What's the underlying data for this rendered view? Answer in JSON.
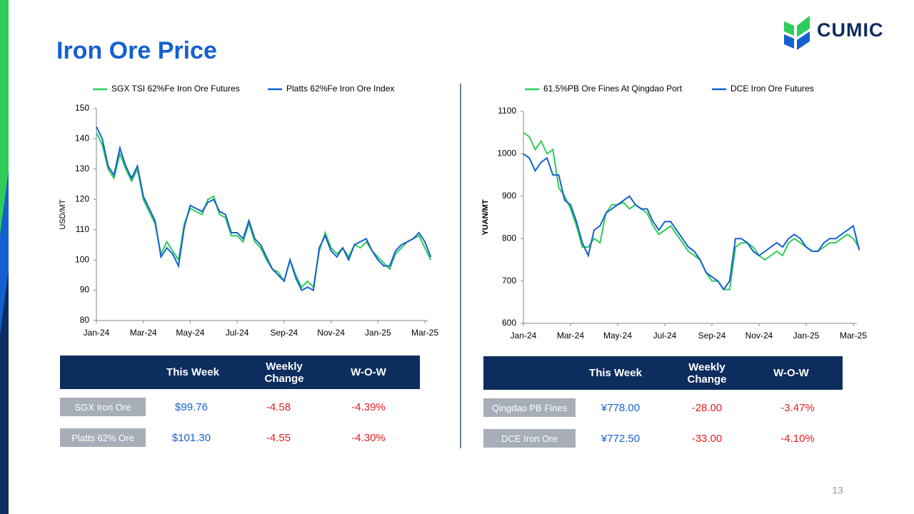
{
  "title": "Iron Ore Price",
  "logo": "CUMIC",
  "page_number": "13",
  "chart_data": [
    {
      "type": "line",
      "ylabel": "USD/MT",
      "legend": "top",
      "categories": [
        "Jan-24",
        null,
        null,
        null,
        null,
        null,
        null,
        null,
        "Mar-24",
        null,
        null,
        null,
        null,
        null,
        null,
        null,
        "May-24",
        null,
        null,
        null,
        null,
        null,
        null,
        null,
        "Jul-24",
        null,
        null,
        null,
        null,
        null,
        null,
        null,
        "Sep-24",
        null,
        null,
        null,
        null,
        null,
        null,
        null,
        "Nov-24",
        null,
        null,
        null,
        null,
        null,
        null,
        null,
        "Jan-25",
        null,
        null,
        null,
        null,
        null,
        null,
        null,
        "Mar-25",
        null
      ],
      "ylim": [
        80,
        150
      ],
      "yticks": [
        80,
        90,
        100,
        110,
        120,
        130,
        140,
        150
      ],
      "series": [
        {
          "name": "SGX TSI 62%Fe Iron Ore Futures",
          "color": "#2ecc5a",
          "values": [
            142,
            138,
            130,
            127,
            135,
            130,
            126,
            130,
            120,
            116,
            112,
            102,
            106,
            103,
            100,
            112,
            117,
            116,
            115,
            120,
            121,
            115,
            114,
            108,
            108,
            106,
            112,
            106,
            104,
            100,
            97,
            96,
            93,
            100,
            95,
            91,
            93,
            91,
            103,
            109,
            104,
            102,
            104,
            101,
            105,
            104,
            106,
            103,
            101,
            99,
            97,
            102,
            104,
            106,
            107,
            108,
            104,
            100
          ]
        },
        {
          "name": "Platts 62%Fe Iron Ore Index",
          "color": "#1560d0",
          "values": [
            144,
            140,
            131,
            128,
            137,
            131,
            127,
            131,
            121,
            117,
            113,
            101,
            104,
            102,
            98,
            111,
            118,
            117,
            116,
            119,
            120,
            116,
            115,
            109,
            109,
            107,
            113,
            107,
            105,
            101,
            97,
            95,
            93,
            100,
            94,
            90,
            91,
            90,
            104,
            108,
            103,
            101,
            104,
            100,
            105,
            106,
            107,
            103,
            100,
            98,
            98,
            103,
            105,
            106,
            107,
            109,
            106,
            101
          ]
        }
      ]
    },
    {
      "type": "line",
      "ylabel": "YUAN/MT",
      "legend": "top",
      "categories": [
        "Jan-24",
        null,
        null,
        null,
        null,
        null,
        null,
        null,
        "Mar-24",
        null,
        null,
        null,
        null,
        null,
        null,
        null,
        "May-24",
        null,
        null,
        null,
        null,
        null,
        null,
        null,
        "Jul-24",
        null,
        null,
        null,
        null,
        null,
        null,
        null,
        "Sep-24",
        null,
        null,
        null,
        null,
        null,
        null,
        null,
        "Nov-24",
        null,
        null,
        null,
        null,
        null,
        null,
        null,
        "Jan-25",
        null,
        null,
        null,
        null,
        null,
        null,
        null,
        "Mar-25",
        null
      ],
      "ylim": [
        600,
        1100
      ],
      "yticks": [
        600,
        700,
        800,
        900,
        1000,
        1100
      ],
      "series": [
        {
          "name": "61.5%PB Ore Fines At Qingdao Port",
          "color": "#2ecc5a",
          "values": [
            1050,
            1040,
            1010,
            1030,
            1000,
            1010,
            920,
            900,
            870,
            830,
            780,
            780,
            800,
            790,
            860,
            880,
            880,
            885,
            870,
            880,
            870,
            860,
            830,
            810,
            820,
            830,
            810,
            790,
            770,
            760,
            750,
            720,
            700,
            700,
            680,
            680,
            780,
            790,
            790,
            780,
            760,
            750,
            760,
            770,
            760,
            790,
            800,
            790,
            780,
            770,
            770,
            780,
            790,
            790,
            800,
            810,
            800,
            778
          ]
        },
        {
          "name": "DCE Iron Ore Futures",
          "color": "#1560d0",
          "values": [
            1000,
            990,
            960,
            980,
            990,
            950,
            950,
            890,
            880,
            840,
            790,
            760,
            820,
            830,
            860,
            870,
            880,
            890,
            900,
            880,
            870,
            870,
            840,
            820,
            840,
            840,
            820,
            800,
            780,
            770,
            750,
            720,
            710,
            700,
            680,
            700,
            800,
            800,
            790,
            770,
            760,
            770,
            780,
            790,
            780,
            800,
            810,
            800,
            780,
            770,
            770,
            790,
            800,
            800,
            810,
            820,
            830,
            772.5
          ]
        }
      ]
    }
  ],
  "tables": [
    {
      "header": [
        "This Week",
        "Weekly Change",
        "W-O-W"
      ],
      "rows": [
        {
          "label": "SGX Iron Ore",
          "cells": [
            "$99.76",
            "-4.58",
            "-4.39%"
          ]
        },
        {
          "label": "Platts 62% Ore",
          "cells": [
            "$101.30",
            "-4.55",
            "-4.30%"
          ]
        }
      ]
    },
    {
      "header": [
        "This Week",
        "Weekly Change",
        "W-O-W"
      ],
      "rows": [
        {
          "label": "Qingdao PB Fines",
          "cells": [
            "¥778.00",
            "-28.00",
            "-3.47%"
          ]
        },
        {
          "label": "DCE Iron Ore",
          "cells": [
            "¥772.50",
            "-33.00",
            "-4.10%"
          ]
        }
      ]
    }
  ]
}
